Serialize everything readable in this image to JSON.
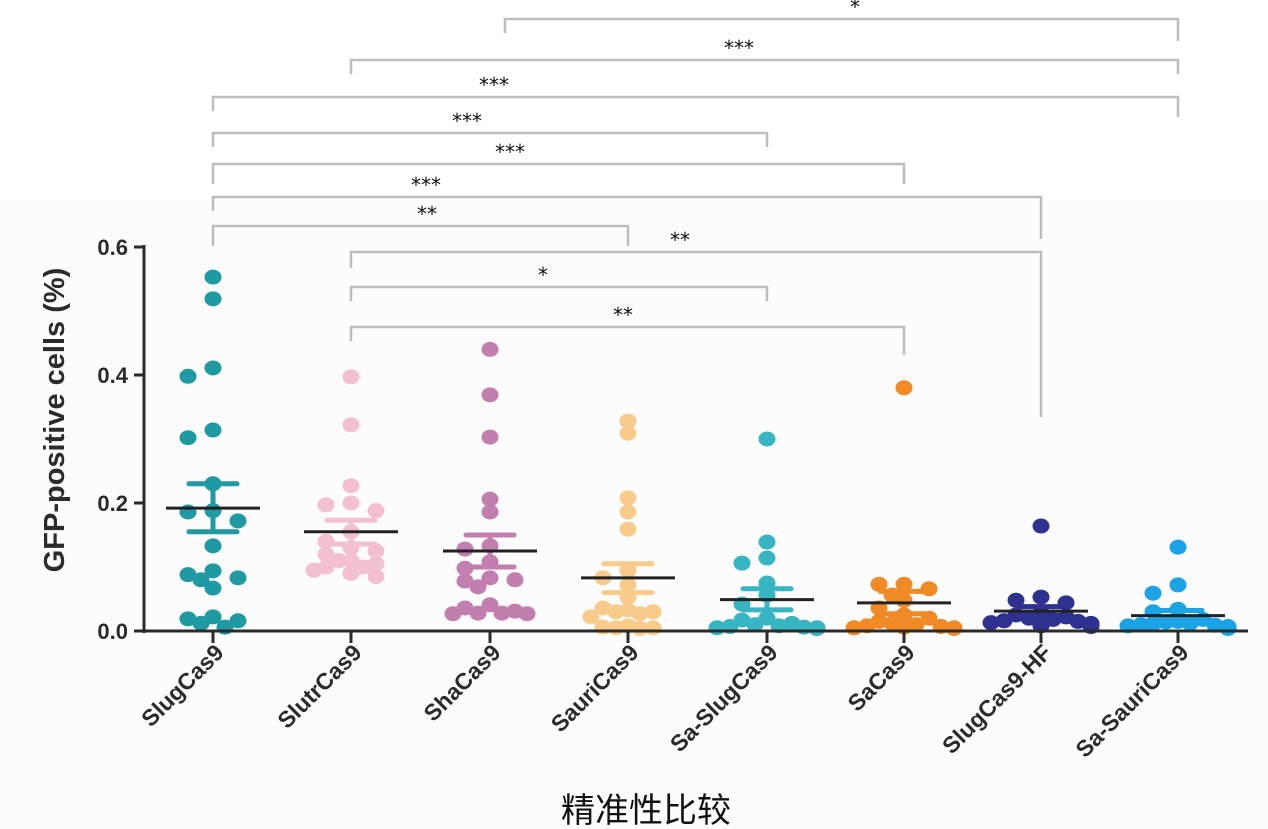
{
  "chart_data": {
    "type": "scatter",
    "title": "",
    "xlabel": "精准性比较",
    "ylabel": "GFP-positive cells (%)",
    "ylim": [
      0,
      0.6
    ],
    "yticks": [
      "0.0",
      "0.2",
      "0.4",
      "0.6"
    ],
    "ytick_values": [
      0,
      0.2,
      0.4,
      0.6
    ],
    "grid": false,
    "categories": [
      "SlugCas9",
      "SlutrCas9",
      "ShaCas9",
      "SauriCas9",
      "Sa-SlugCas9",
      "SaCas9",
      "SlugCas9-HF",
      "Sa-SauriCas9"
    ],
    "series": [
      {
        "name": "SlugCas9",
        "color": "#1f9aa3",
        "mean": 0.192,
        "sem_upper": 0.23,
        "sem_lower": 0.155,
        "values": [
          0.553,
          0.519,
          0.411,
          0.398,
          0.314,
          0.302,
          0.23,
          0.188,
          0.186,
          0.172,
          0.133,
          0.094,
          0.088,
          0.083,
          0.08,
          0.067,
          0.022,
          0.019,
          0.016,
          0.012,
          0.006
        ]
      },
      {
        "name": "SlutrCas9",
        "color": "#f2c0cf",
        "mean": 0.155,
        "sem_upper": 0.173,
        "sem_lower": 0.136,
        "values": [
          0.397,
          0.322,
          0.227,
          0.2,
          0.197,
          0.188,
          0.155,
          0.14,
          0.13,
          0.125,
          0.12,
          0.11,
          0.11,
          0.105,
          0.1,
          0.1,
          0.095,
          0.09,
          0.085
        ]
      },
      {
        "name": "ShaCas9",
        "color": "#c27eaf",
        "mean": 0.125,
        "sem_upper": 0.15,
        "sem_lower": 0.1,
        "values": [
          0.44,
          0.369,
          0.303,
          0.206,
          0.186,
          0.133,
          0.128,
          0.108,
          0.098,
          0.083,
          0.08,
          0.078,
          0.069,
          0.041,
          0.036,
          0.031,
          0.028,
          0.028,
          0.027,
          0.027
        ]
      },
      {
        "name": "SauriCas9",
        "color": "#f9cb8a",
        "mean": 0.083,
        "sem_upper": 0.105,
        "sem_lower": 0.06,
        "values": [
          0.328,
          0.309,
          0.208,
          0.186,
          0.159,
          0.095,
          0.083,
          0.072,
          0.053,
          0.036,
          0.033,
          0.03,
          0.03,
          0.027,
          0.022,
          0.008,
          0.006,
          0.005,
          0.005,
          0.004
        ]
      },
      {
        "name": "Sa-SlugCas9",
        "color": "#37b5c2",
        "mean": 0.049,
        "sem_upper": 0.066,
        "sem_lower": 0.033,
        "values": [
          0.3,
          0.139,
          0.114,
          0.106,
          0.075,
          0.056,
          0.042,
          0.02,
          0.017,
          0.012,
          0.01,
          0.008,
          0.007,
          0.006,
          0.005,
          0.005,
          0.004,
          0.004
        ]
      },
      {
        "name": "SaCas9",
        "color": "#f08a24",
        "mean": 0.044,
        "sem_upper": 0.062,
        "sem_lower": 0.027,
        "values": [
          0.38,
          0.073,
          0.073,
          0.066,
          0.056,
          0.048,
          0.036,
          0.025,
          0.02,
          0.015,
          0.012,
          0.01,
          0.008,
          0.007,
          0.006,
          0.005,
          0.005,
          0.004
        ]
      },
      {
        "name": "SlugCas9-HF",
        "color": "#2e3190",
        "mean": 0.031,
        "sem_upper": 0.038,
        "sem_lower": 0.024,
        "values": [
          0.164,
          0.053,
          0.048,
          0.044,
          0.028,
          0.025,
          0.022,
          0.02,
          0.018,
          0.016,
          0.015,
          0.013,
          0.012,
          0.01,
          0.01,
          0.008,
          0.007
        ]
      },
      {
        "name": "Sa-SauriCas9",
        "color": "#1aa4e6",
        "mean": 0.024,
        "sem_upper": 0.032,
        "sem_lower": 0.017,
        "values": [
          0.131,
          0.072,
          0.059,
          0.034,
          0.03,
          0.018,
          0.015,
          0.014,
          0.012,
          0.011,
          0.01,
          0.009,
          0.008,
          0.007,
          0.006,
          0.005,
          0.005,
          0.004
        ]
      }
    ],
    "comparisons": [
      {
        "from": "SauriCas9",
        "to": "Sa-SauriCas9",
        "label": "*"
      },
      {
        "from": "SlutrCas9",
        "to": "Sa-SauriCas9",
        "label": "***"
      },
      {
        "from": "SlugCas9",
        "to": "Sa-SauriCas9",
        "label": "***"
      },
      {
        "from": "SlugCas9",
        "to": "Sa-SlugCas9",
        "label": "***"
      },
      {
        "from": "SlugCas9",
        "to": "SaCas9",
        "label": "***"
      },
      {
        "from": "SlugCas9",
        "to": "SlugCas9-HF",
        "label": "***"
      },
      {
        "from": "SlugCas9",
        "to": "SauriCas9",
        "label": "**"
      },
      {
        "from": "SlutrCas9",
        "to": "SlugCas9-HF",
        "label": "**"
      },
      {
        "from": "SlutrCas9",
        "to": "Sa-SlugCas9",
        "label": "*"
      },
      {
        "from": "SlutrCas9",
        "to": "SaCas9",
        "label": "**"
      }
    ]
  }
}
